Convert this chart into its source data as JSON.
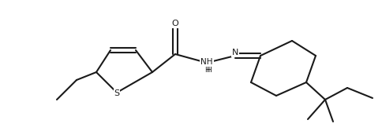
{
  "bg_color": "#ffffff",
  "line_color": "#1a1a1a",
  "line_width": 1.5,
  "fig_width": 4.85,
  "fig_height": 1.67,
  "dpi": 100,
  "xlim": [
    0,
    4.85
  ],
  "ylim": [
    0,
    1.67
  ]
}
